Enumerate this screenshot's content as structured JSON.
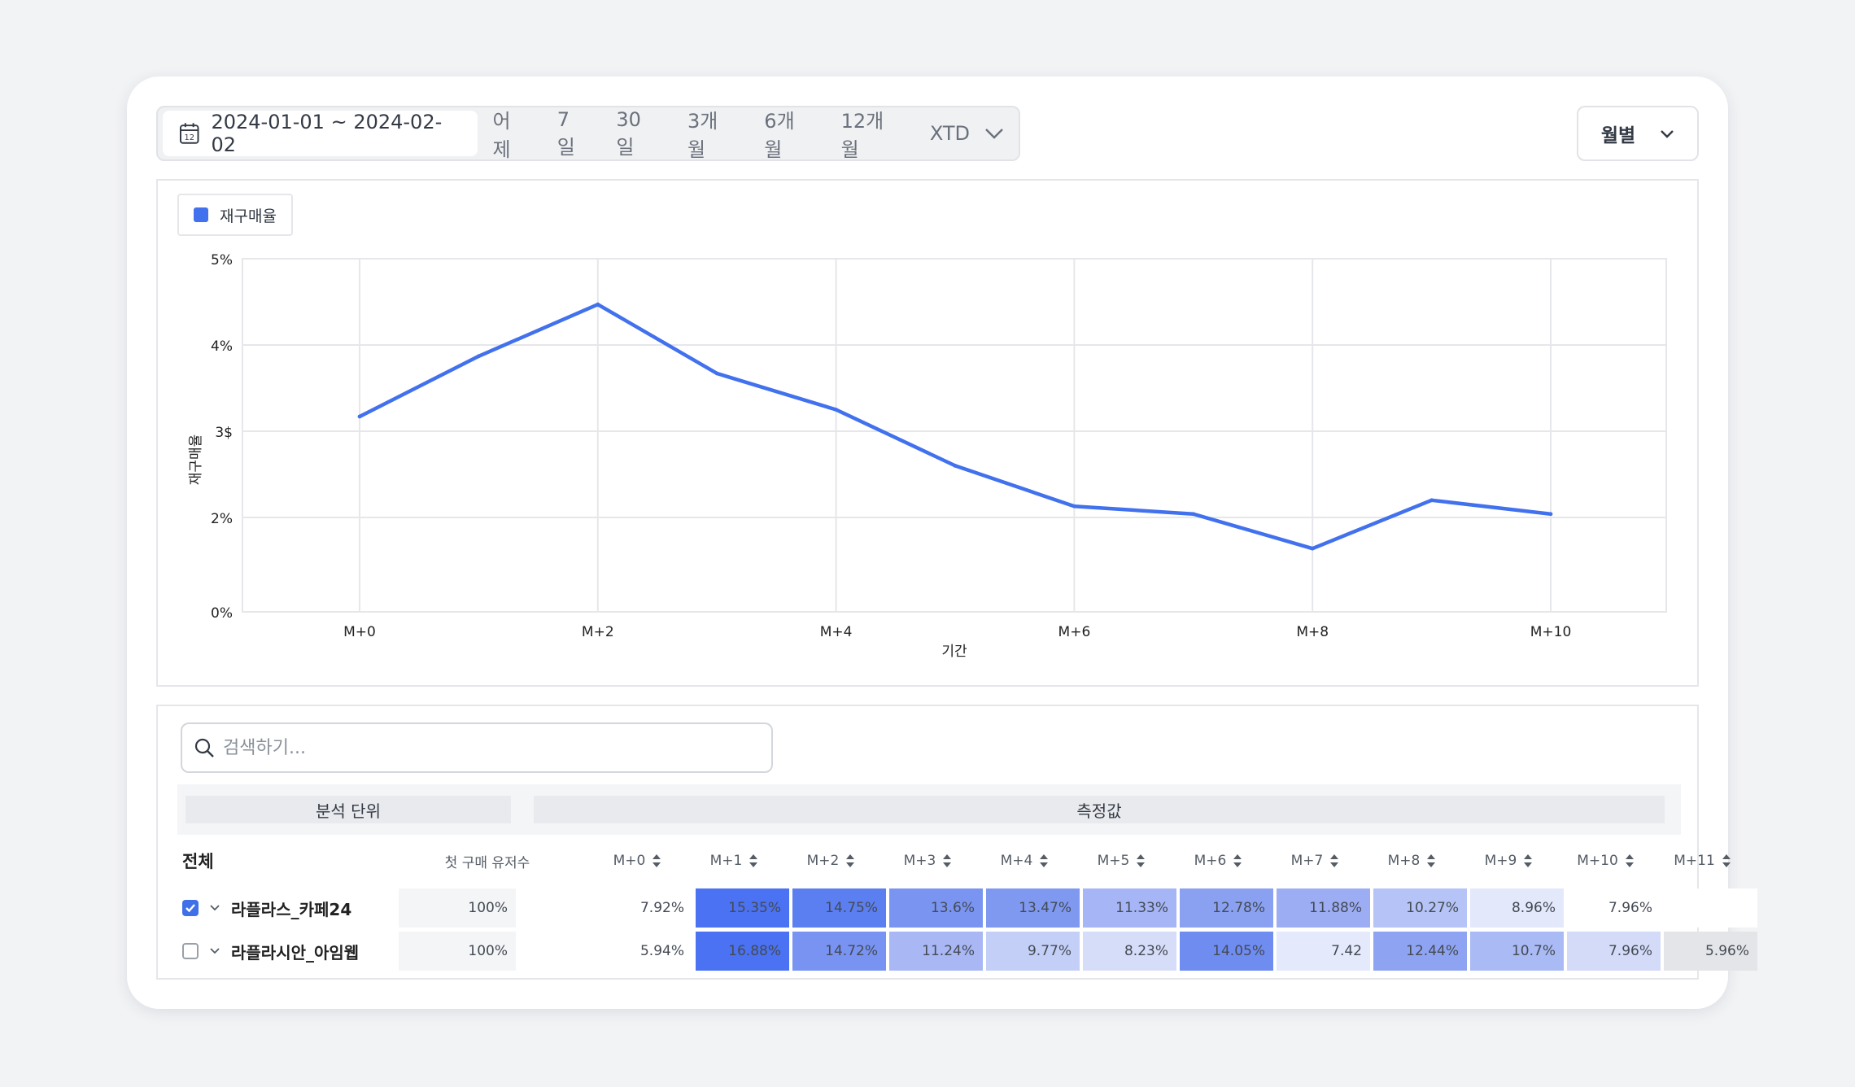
{
  "toolbar": {
    "date_range": "2024-01-01 ~ 2024-02-02",
    "calendar_day": "12",
    "quick_ranges": [
      "어제",
      "7일",
      "30일",
      "3개월",
      "6개월",
      "12개월"
    ],
    "xtd_label": "XTD",
    "period_label": "월별"
  },
  "colors": {
    "accent": "#4271ee"
  },
  "chart_data": {
    "type": "line",
    "legend": [
      "재구매율"
    ],
    "legend_position": "top-left",
    "xlabel": "기간",
    "ylabel": "재구매율",
    "x": [
      "M+0",
      "M+1",
      "M+2",
      "M+3",
      "M+4",
      "M+5",
      "M+6",
      "M+7",
      "M+8",
      "M+9",
      "M+10"
    ],
    "x_tick_labels": [
      "M+0",
      "M+2",
      "M+4",
      "M+6",
      "M+8",
      "M+10"
    ],
    "y_ticks": [
      0,
      2,
      3,
      4,
      5
    ],
    "y_tick_labels": [
      "0%",
      "2%",
      "3$",
      "4%",
      "5%"
    ],
    "ylim": [
      1,
      5
    ],
    "grid": true,
    "series": [
      {
        "name": "재구매율",
        "values": [
          3.17,
          3.87,
          4.47,
          3.67,
          3.25,
          2.6,
          2.13,
          2.04,
          1.64,
          2.2,
          2.04
        ]
      }
    ]
  },
  "table": {
    "search_placeholder": "검색하기...",
    "group_headers": {
      "dimension": "분석 단위",
      "measure": "측정값"
    },
    "total_label": "전체",
    "first_buyer_header": "첫 구매 유저수",
    "columns": [
      "M+0",
      "M+1",
      "M+2",
      "M+3",
      "M+4",
      "M+5",
      "M+6",
      "M+7",
      "M+8",
      "M+9",
      "M+10",
      "M+11"
    ],
    "rows": [
      {
        "label": "라플라스_카페24",
        "checked": true,
        "first_buyers": "100%",
        "values": [
          "7.92%",
          "15.35%",
          "14.75%",
          "13.6%",
          "13.47%",
          "11.33%",
          "12.78%",
          "11.88%",
          "10.27%",
          "8.96%",
          "7.96%",
          ""
        ],
        "shades": [
          "#ffffff",
          "#4a72f2",
          "#5b7ff0",
          "#7a95f1",
          "#7f99f1",
          "#a5b5f5",
          "#8aa1f2",
          "#9cadf3",
          "#b5c3f6",
          "#e3e8fb",
          "#ffffff",
          "#ffffff"
        ]
      },
      {
        "label": "라플라시안_아임웹",
        "checked": false,
        "first_buyers": "100%",
        "values": [
          "5.94%",
          "16.88%",
          "14.72%",
          "11.24%",
          "9.77%",
          "8.23%",
          "14.05%",
          "7.42",
          "12.44%",
          "10.7%",
          "7.96%",
          "5.96%"
        ],
        "shades": [
          "#ffffff",
          "#4a72f2",
          "#7893f1",
          "#a9b8f5",
          "#c4cff7",
          "#d6ddf9",
          "#6f8cf1",
          "#e4e9fb",
          "#8ea4f2",
          "#aabaf5",
          "#d3dbf9",
          "#e4e5e9"
        ]
      }
    ]
  }
}
